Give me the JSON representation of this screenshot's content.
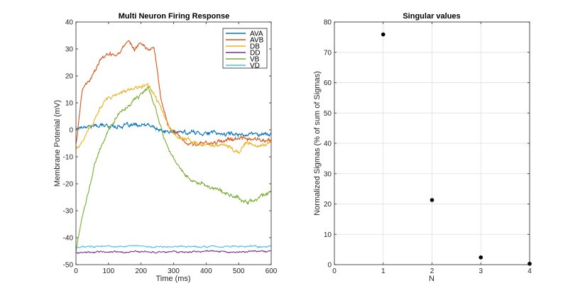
{
  "chart_data": [
    {
      "type": "line",
      "title": "Multi Neuron Firing Response",
      "xlabel": "Time (ms)",
      "ylabel": "Membrane Potenial (mV)",
      "xlim": [
        0,
        600
      ],
      "ylim": [
        -50,
        40
      ],
      "xticks": [
        0,
        100,
        200,
        300,
        400,
        500,
        600
      ],
      "yticks": [
        -50,
        -40,
        -30,
        -20,
        -10,
        0,
        10,
        20,
        30,
        40
      ],
      "grid": false,
      "legend": "top-right",
      "series": [
        {
          "name": "AVA",
          "color": "#0072bd",
          "x": [
            0,
            25,
            50,
            100,
            150,
            200,
            220,
            240,
            260,
            300,
            350,
            400,
            450,
            500,
            550,
            600
          ],
          "y": [
            0.5,
            1.5,
            1.5,
            1.5,
            1.5,
            1.5,
            1.5,
            1.0,
            -0.5,
            -1.0,
            -1.0,
            -1.0,
            -1.5,
            -1.5,
            -1.5,
            -1.5
          ]
        },
        {
          "name": "AVB",
          "color": "#d95319",
          "x": [
            0,
            10,
            20,
            40,
            60,
            80,
            100,
            120,
            140,
            160,
            180,
            200,
            220,
            240,
            260,
            280,
            300,
            320,
            340,
            360,
            380,
            400,
            450,
            500,
            550,
            600
          ],
          "y": [
            -5,
            5,
            15,
            18,
            22,
            27,
            28,
            28,
            30,
            33,
            30,
            32,
            30,
            30,
            12,
            3,
            -1,
            -3,
            -5,
            -6,
            -5,
            -5,
            -4,
            -3,
            -4,
            -4
          ]
        },
        {
          "name": "DB",
          "color": "#edb120",
          "x": [
            0,
            10,
            20,
            40,
            60,
            80,
            100,
            120,
            140,
            160,
            180,
            200,
            220,
            240,
            260,
            280,
            300,
            350,
            400,
            450,
            500,
            520,
            550,
            600
          ],
          "y": [
            -7,
            -6,
            -4,
            0,
            5,
            9,
            12,
            13,
            14,
            15,
            15,
            16,
            17,
            13,
            8,
            3,
            -2,
            -4,
            -6,
            -5,
            -8,
            -5,
            -6,
            -5
          ]
        },
        {
          "name": "DD",
          "color": "#7e2f8e",
          "x": [
            0,
            100,
            200,
            300,
            400,
            500,
            600
          ],
          "y": [
            -45.5,
            -45.3,
            -45.2,
            -45.3,
            -45.2,
            -45.3,
            -45.3
          ]
        },
        {
          "name": "VB",
          "color": "#77ac30",
          "x": [
            0,
            10,
            20,
            30,
            40,
            50,
            60,
            80,
            100,
            120,
            140,
            160,
            180,
            200,
            220,
            240,
            260,
            280,
            300,
            320,
            340,
            360,
            380,
            400,
            450,
            500,
            520,
            550,
            600
          ],
          "y": [
            -45,
            -38,
            -32,
            -27,
            -22,
            -17,
            -12,
            -6,
            0,
            4,
            7,
            9,
            11,
            13,
            16,
            10,
            2,
            -6,
            -10,
            -14,
            -17,
            -19,
            -20,
            -21,
            -23,
            -25,
            -27,
            -26,
            -23
          ]
        },
        {
          "name": "VD",
          "color": "#4dbeee",
          "x": [
            0,
            100,
            200,
            300,
            400,
            500,
            600
          ],
          "y": [
            -43.5,
            -43.3,
            -43.2,
            -43.4,
            -43.3,
            -43.2,
            -43.4
          ]
        }
      ]
    },
    {
      "type": "scatter",
      "title": "Singular values",
      "xlabel": "N",
      "ylabel": "Normalized Sigmas (% of sum of Sigmas)",
      "xlim": [
        0,
        4
      ],
      "ylim": [
        0,
        80
      ],
      "xticks": [
        0,
        1,
        2,
        3,
        4
      ],
      "yticks": [
        0,
        10,
        20,
        30,
        40,
        50,
        60,
        70,
        80
      ],
      "grid": true,
      "series": [
        {
          "color": "#000000",
          "x": [
            1,
            2,
            3,
            4
          ],
          "y": [
            75.9,
            21.3,
            2.4,
            0.3
          ]
        }
      ]
    }
  ]
}
